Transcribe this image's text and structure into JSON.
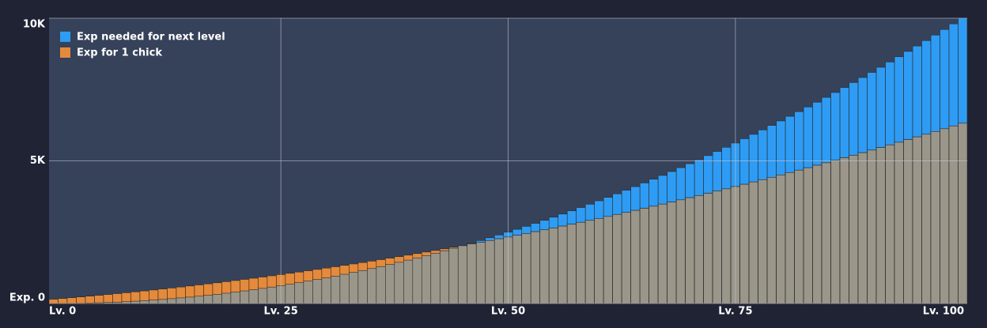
{
  "chart_data": {
    "type": "bar",
    "categories": [
      "Lv. 0",
      null,
      null,
      null,
      null,
      null,
      null,
      null,
      null,
      null,
      null,
      null,
      null,
      null,
      null,
      null,
      null,
      null,
      null,
      null,
      null,
      null,
      null,
      null,
      null,
      "Lv. 25",
      null,
      null,
      null,
      null,
      null,
      null,
      null,
      null,
      null,
      null,
      null,
      null,
      null,
      null,
      null,
      null,
      null,
      null,
      null,
      null,
      null,
      null,
      null,
      null,
      "Lv. 50",
      null,
      null,
      null,
      null,
      null,
      null,
      null,
      null,
      null,
      null,
      null,
      null,
      null,
      null,
      null,
      null,
      null,
      null,
      null,
      null,
      null,
      null,
      null,
      null,
      "Lv. 75",
      null,
      null,
      null,
      null,
      null,
      null,
      null,
      null,
      null,
      null,
      null,
      null,
      null,
      null,
      null,
      null,
      null,
      null,
      null,
      null,
      null,
      null,
      null,
      null,
      "Lv. 100"
    ],
    "series": [
      {
        "name": "Exp needed for next level",
        "color": "#2e9cf4",
        "values": [
          0,
          1,
          4,
          9,
          16,
          25,
          36,
          49,
          64,
          81,
          100,
          121,
          144,
          169,
          196,
          225,
          256,
          289,
          324,
          361,
          400,
          441,
          484,
          529,
          576,
          625,
          676,
          729,
          784,
          841,
          900,
          961,
          1024,
          1089,
          1156,
          1225,
          1296,
          1369,
          1444,
          1521,
          1600,
          1681,
          1764,
          1849,
          1936,
          2025,
          2116,
          2209,
          2304,
          2401,
          2500,
          2601,
          2704,
          2809,
          2916,
          3025,
          3136,
          3249,
          3364,
          3481,
          3600,
          3721,
          3844,
          3969,
          4096,
          4225,
          4356,
          4489,
          4624,
          4761,
          4900,
          5041,
          5184,
          5329,
          5476,
          5625,
          5776,
          5929,
          6084,
          6241,
          6400,
          6561,
          6724,
          6889,
          7056,
          7225,
          7396,
          7569,
          7744,
          7921,
          8100,
          8281,
          8464,
          8649,
          8836,
          9025,
          9216,
          9409,
          9604,
          9801,
          10000
        ]
      },
      {
        "name": "Exp for 1 chick",
        "color": "#e58a3a",
        "values": [
          150,
          176,
          202,
          230,
          258,
          287,
          316,
          346,
          377,
          409,
          441,
          474,
          508,
          543,
          578,
          614,
          651,
          688,
          726,
          765,
          805,
          845,
          886,
          928,
          971,
          1014,
          1058,
          1102,
          1148,
          1194,
          1241,
          1288,
          1337,
          1386,
          1435,
          1486,
          1537,
          1589,
          1642,
          1695,
          1749,
          1804,
          1860,
          1916,
          1973,
          2031,
          2089,
          2148,
          2208,
          2269,
          2330,
          2392,
          2455,
          2518,
          2583,
          2648,
          2713,
          2780,
          2847,
          2915,
          2983,
          3053,
          3123,
          3193,
          3265,
          3337,
          3410,
          3484,
          3558,
          3633,
          3709,
          3785,
          3863,
          3941,
          4019,
          4099,
          4179,
          4260,
          4341,
          4424,
          4507,
          4591,
          4675,
          4760,
          4846,
          4933,
          5020,
          5109,
          5197,
          5287,
          5377,
          5468,
          5560,
          5653,
          5746,
          5840,
          5934,
          6030,
          6126,
          6223,
          6320
        ]
      }
    ],
    "overlap_color": "#9b968a",
    "ylim": [
      0,
      10000
    ],
    "yticks": [
      {
        "value": 0,
        "label": "Exp. 0"
      },
      {
        "value": 5000,
        "label": "5K"
      },
      {
        "value": 10000,
        "label": "10K"
      }
    ],
    "grid": true,
    "legend": "top-left"
  }
}
